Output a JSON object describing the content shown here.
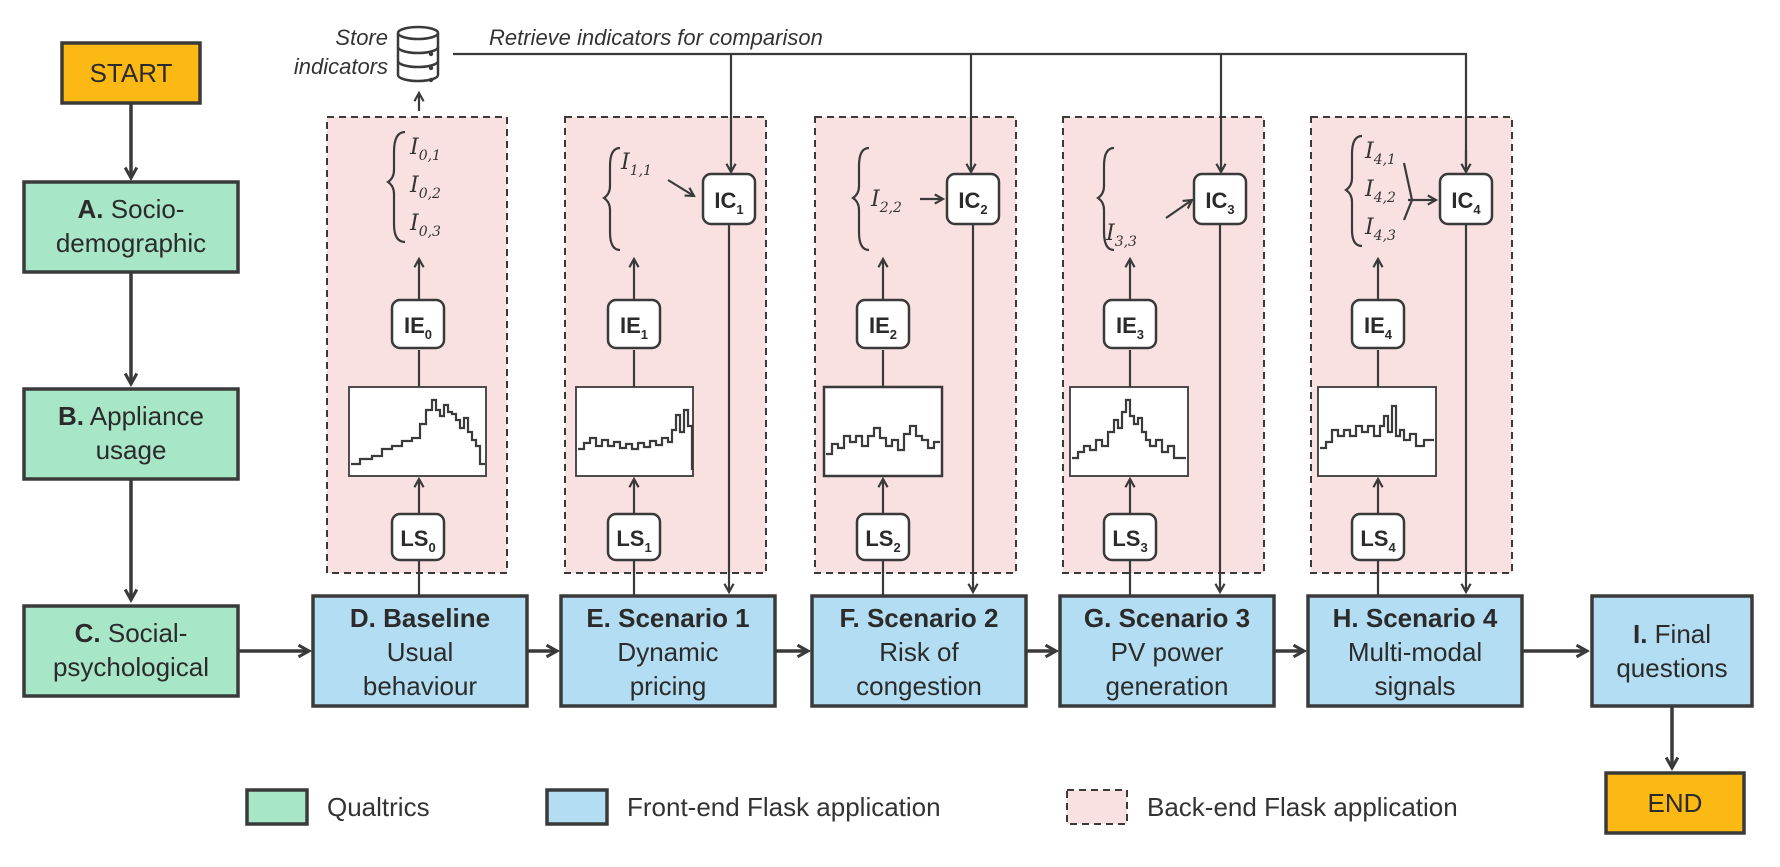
{
  "colors": {
    "start_end": "#FDB913",
    "qualtrics": "#A8E6C8",
    "frontend": "#B3DDF2",
    "backend": "#F9E1E1",
    "stroke": "#3a3a3a"
  },
  "start": "START",
  "end": "END",
  "qualtrics_steps": [
    {
      "letter": "A.",
      "line1_rest": "Socio-",
      "line2": "demographic"
    },
    {
      "letter": "B.",
      "line1_rest": "Appliance",
      "line2": "usage"
    },
    {
      "letter": "C.",
      "line1_rest": "Social-",
      "line2": "psychological"
    }
  ],
  "frontend_steps": [
    {
      "title": "D. Baseline",
      "line2": "Usual",
      "line3": "behaviour"
    },
    {
      "title": "E. Scenario 1",
      "line2": "Dynamic",
      "line3": "pricing"
    },
    {
      "title": "F. Scenario 2",
      "line2": "Risk of",
      "line3": "congestion"
    },
    {
      "title": "G. Scenario 3",
      "line2": "PV power",
      "line3": "generation"
    },
    {
      "title": "H. Scenario 4",
      "line2": "Multi-modal",
      "line3": "signals"
    }
  ],
  "final_step": {
    "letter": "I.",
    "line1_rest": "Final",
    "line2": "questions"
  },
  "backend_modules": [
    {
      "ls": "LS",
      "ls_sub": "0",
      "ie": "IE",
      "ie_sub": "0",
      "ic": "",
      "ic_sub": "",
      "indicators": [
        {
          "sym": "I",
          "sub": "0,1"
        },
        {
          "sym": "I",
          "sub": "0,2"
        },
        {
          "sym": "I",
          "sub": "0,3"
        }
      ]
    },
    {
      "ls": "LS",
      "ls_sub": "1",
      "ie": "IE",
      "ie_sub": "1",
      "ic": "IC",
      "ic_sub": "1",
      "indicators": [
        {
          "sym": "I",
          "sub": "1,1"
        }
      ]
    },
    {
      "ls": "LS",
      "ls_sub": "2",
      "ie": "IE",
      "ie_sub": "2",
      "ic": "IC",
      "ic_sub": "2",
      "indicators": [
        {
          "sym": "I",
          "sub": "2,2"
        }
      ]
    },
    {
      "ls": "LS",
      "ls_sub": "3",
      "ie": "IE",
      "ie_sub": "3",
      "ic": "IC",
      "ic_sub": "3",
      "indicators": [
        {
          "sym": "I",
          "sub": "3,3"
        }
      ]
    },
    {
      "ls": "LS",
      "ls_sub": "4",
      "ie": "IE",
      "ie_sub": "4",
      "ic": "IC",
      "ic_sub": "4",
      "indicators": [
        {
          "sym": "I",
          "sub": "4,1"
        },
        {
          "sym": "I",
          "sub": "4,2"
        },
        {
          "sym": "I",
          "sub": "4,3"
        }
      ]
    }
  ],
  "store_label_line1": "Store",
  "store_label_line2": "indicators",
  "retrieve_label": "Retrieve indicators for comparison",
  "database_icon": "database-icon",
  "legend": [
    {
      "label": "Qualtrics",
      "style": "qualtrics"
    },
    {
      "label": "Front-end Flask application",
      "style": "frontend"
    },
    {
      "label": "Back-end Flask application",
      "style": "backend"
    }
  ]
}
